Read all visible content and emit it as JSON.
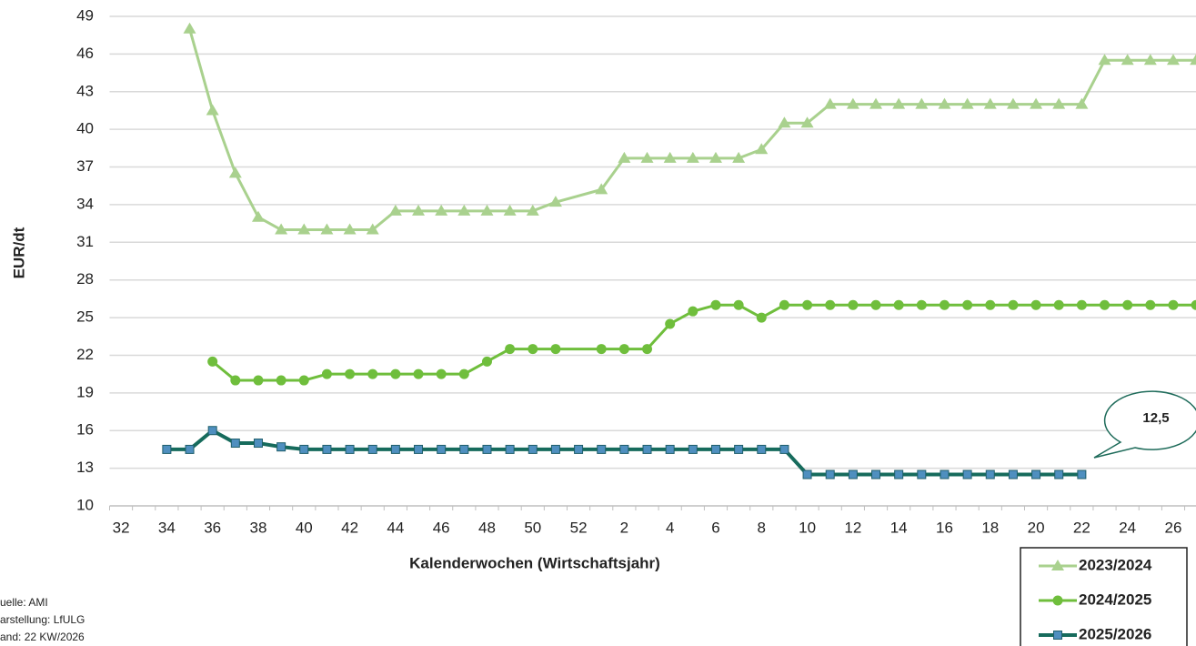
{
  "chart_data": {
    "type": "line",
    "y_label": "EUR/dt",
    "x_label": "Kalenderwochen (Wirtschaftsjahr)",
    "annotation": "12,5",
    "source": [
      "uelle: AMI",
      "arstellung: LfULG",
      "and: 22 KW/2026"
    ],
    "categories": [
      "32",
      null,
      "34",
      null,
      "36",
      null,
      "38",
      null,
      "40",
      null,
      "42",
      null,
      "44",
      null,
      "46",
      null,
      "48",
      null,
      "50",
      null,
      "52",
      null,
      "2",
      null,
      "4",
      null,
      "6",
      null,
      "8",
      null,
      "10",
      null,
      "12",
      null,
      "14",
      null,
      "16",
      null,
      "18",
      null,
      "20",
      null,
      "22",
      null,
      "24",
      null,
      "26",
      null
    ],
    "ylim": [
      10,
      49
    ],
    "yticks": [
      10,
      13,
      16,
      19,
      22,
      25,
      28,
      31,
      34,
      37,
      40,
      43,
      46,
      49
    ],
    "grid": true,
    "connect_gaps": true,
    "series": [
      {
        "name": "2023/2024",
        "color": "#a9d18e",
        "marker": "triangle",
        "marker_color": "#a9d18e",
        "values": [
          null,
          null,
          null,
          48,
          41.5,
          36.5,
          33,
          32,
          32,
          32,
          32,
          32,
          33.5,
          33.5,
          33.5,
          33.5,
          33.5,
          33.5,
          33.5,
          34.2,
          null,
          35.2,
          37.7,
          37.7,
          37.7,
          37.7,
          37.7,
          37.7,
          38.4,
          40.5,
          40.5,
          42,
          42,
          42,
          42,
          42,
          42,
          42,
          42,
          42,
          42,
          42,
          42,
          45.5,
          45.5,
          45.5,
          45.5,
          45.5
        ]
      },
      {
        "name": "2024/2025",
        "color": "#6fbe3c",
        "marker": "circle",
        "marker_color": "#6fbe3c",
        "values": [
          null,
          null,
          null,
          null,
          21.5,
          20,
          20,
          20,
          20,
          20.5,
          20.5,
          20.5,
          20.5,
          20.5,
          20.5,
          20.5,
          21.5,
          22.5,
          22.5,
          22.5,
          null,
          22.5,
          22.5,
          22.5,
          24.5,
          25.5,
          26,
          26,
          25,
          26,
          26,
          26,
          26,
          26,
          26,
          26,
          26,
          26,
          26,
          26,
          26,
          26,
          26,
          26,
          26,
          26,
          26,
          26
        ]
      },
      {
        "name": "2025/2026",
        "color": "#166b5c",
        "marker": "square",
        "marker_color": "#4f8fbf",
        "values": [
          null,
          null,
          14.5,
          14.5,
          16,
          15,
          15,
          14.7,
          14.5,
          14.5,
          14.5,
          14.5,
          14.5,
          14.5,
          14.5,
          14.5,
          14.5,
          14.5,
          14.5,
          14.5,
          14.5,
          14.5,
          14.5,
          14.5,
          14.5,
          14.5,
          14.5,
          14.5,
          14.5,
          14.5,
          12.5,
          12.5,
          12.5,
          12.5,
          12.5,
          12.5,
          12.5,
          12.5,
          12.5,
          12.5,
          12.5,
          12.5,
          12.5,
          null,
          null,
          null,
          null,
          null
        ]
      }
    ]
  }
}
